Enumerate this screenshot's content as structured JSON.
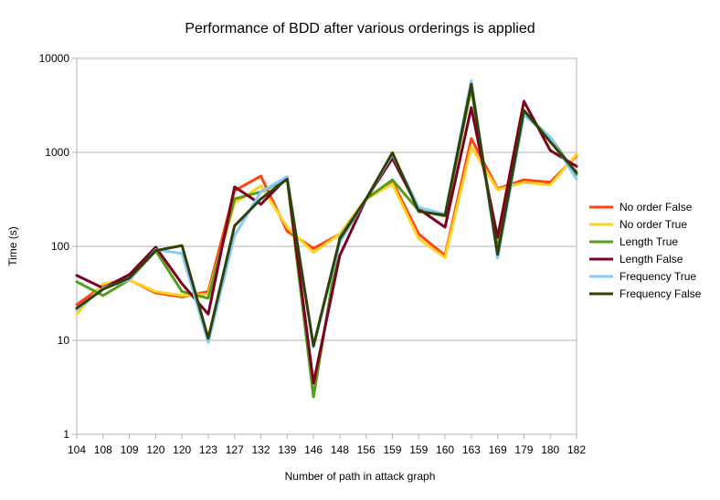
{
  "chart_data": {
    "type": "line",
    "title": "Performance of BDD after various orderings is applied",
    "xlabel": "Number of path in attack graph",
    "ylabel": "Time (s)",
    "yscale": "log",
    "ylim": [
      1,
      10000
    ],
    "yticks": [
      "1",
      "10",
      "100",
      "1000",
      "10000"
    ],
    "grid": "horizontal",
    "legend_position": "right",
    "categories": [
      "104",
      "108",
      "109",
      "120",
      "120",
      "123",
      "127",
      "132",
      "139",
      "146",
      "148",
      "156",
      "159",
      "159",
      "160",
      "163",
      "169",
      "179",
      "180",
      "182"
    ],
    "series": [
      {
        "name": "No order False",
        "color": "#ff420e",
        "values": [
          24,
          38,
          44,
          32,
          29,
          33,
          390,
          560,
          145,
          95,
          135,
          320,
          490,
          135,
          80,
          1400,
          410,
          510,
          480,
          920
        ]
      },
      {
        "name": "No order True",
        "color": "#ffd320",
        "values": [
          19,
          40,
          44,
          33,
          30,
          31,
          290,
          440,
          160,
          86,
          135,
          320,
          460,
          120,
          76,
          1150,
          400,
          480,
          450,
          950
        ]
      },
      {
        "name": "Length True",
        "color": "#579d1c",
        "values": [
          42,
          30,
          44,
          90,
          33,
          28,
          320,
          380,
          520,
          2.5,
          125,
          320,
          510,
          240,
          210,
          4800,
          95,
          2600,
          1450,
          580
        ]
      },
      {
        "name": "Length False",
        "color": "#7e0021",
        "values": [
          49,
          36,
          50,
          98,
          40,
          19,
          430,
          280,
          540,
          3.5,
          80,
          320,
          860,
          250,
          160,
          3000,
          125,
          3500,
          1050,
          710
        ]
      },
      {
        "name": "Frequency True",
        "color": "#83caff",
        "values": [
          21,
          36,
          44,
          92,
          84,
          9.5,
          130,
          380,
          550,
          8.5,
          110,
          320,
          950,
          260,
          220,
          5800,
          75,
          2500,
          1450,
          520
        ]
      },
      {
        "name": "Frequency False",
        "color": "#314004",
        "values": [
          22,
          35,
          46,
          90,
          102,
          10.5,
          165,
          320,
          520,
          8.7,
          120,
          320,
          990,
          235,
          215,
          5300,
          82,
          2800,
          1300,
          610
        ]
      }
    ]
  }
}
